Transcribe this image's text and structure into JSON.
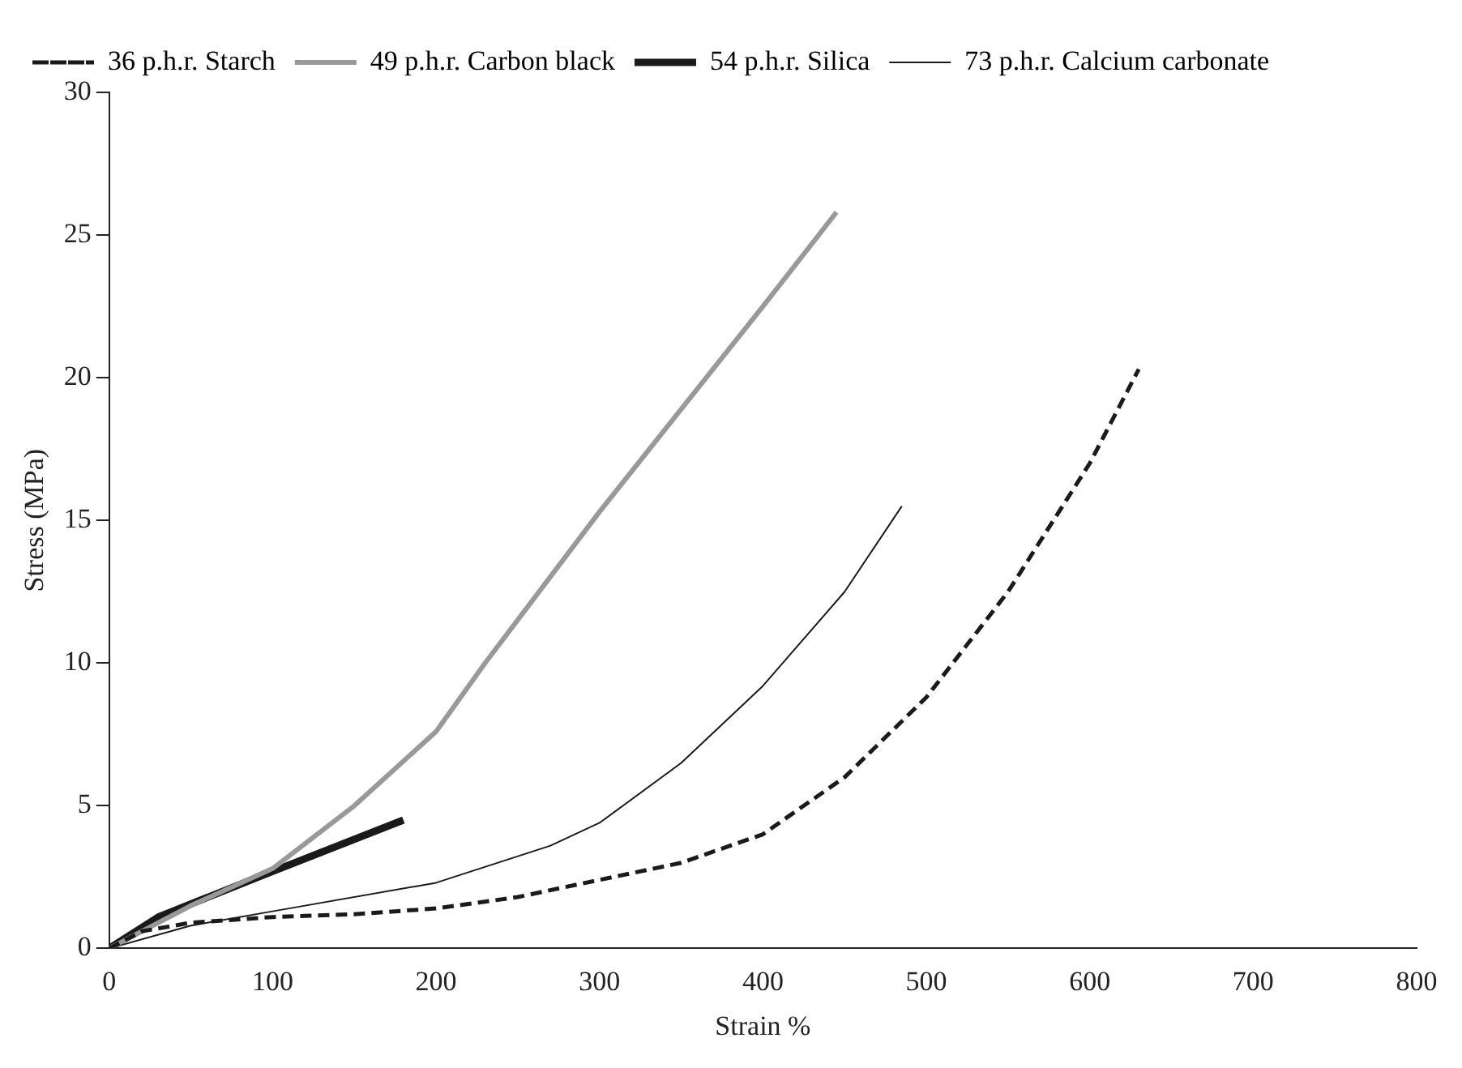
{
  "chart_data": {
    "type": "line",
    "xlabel": "Strain %",
    "ylabel": "Stress (MPa)",
    "xlim": [
      0,
      800
    ],
    "xticks": [
      0,
      100,
      200,
      300,
      400,
      500,
      600,
      700,
      800
    ],
    "ylim": [
      0,
      30
    ],
    "yticks": [
      0,
      5,
      10,
      15,
      20,
      25,
      30
    ],
    "grid": false,
    "legend": "top left",
    "marker": "none",
    "series": [
      {
        "name": "36 p.h.r. Starch",
        "color": "#1a1a1a",
        "line_style": "dashed",
        "x": [
          0,
          20,
          50,
          100,
          150,
          200,
          250,
          300,
          350,
          400,
          450,
          500,
          550,
          600,
          630
        ],
        "values": [
          0,
          0.6,
          0.9,
          1.1,
          1.2,
          1.4,
          1.8,
          2.4,
          3,
          4,
          6,
          8.8,
          12.5,
          17,
          20.3
        ]
      },
      {
        "name": "49 p.h.r. Carbon black",
        "color": "#999999",
        "line_style": "solid",
        "x": [
          0,
          50,
          100,
          150,
          200,
          230,
          300,
          350,
          400,
          445
        ],
        "values": [
          0,
          1.5,
          2.8,
          5,
          7.6,
          10,
          15.3,
          18.9,
          22.5,
          25.8
        ]
      },
      {
        "name": "54 p.h.r. Silica",
        "color": "#1a1a1a",
        "line_style": "solid",
        "x": [
          0,
          30,
          100,
          180
        ],
        "values": [
          0,
          1.1,
          2.7,
          4.5
        ]
      },
      {
        "name": "73 p.h.r. Calcium carbonate",
        "color": "#1a1a1a",
        "line_style": "solid",
        "x": [
          0,
          50,
          100,
          200,
          270,
          300,
          350,
          400,
          450,
          485
        ],
        "values": [
          0,
          0.8,
          1.3,
          2.3,
          3.6,
          4.4,
          6.5,
          9.2,
          12.5,
          15.5
        ]
      }
    ]
  }
}
